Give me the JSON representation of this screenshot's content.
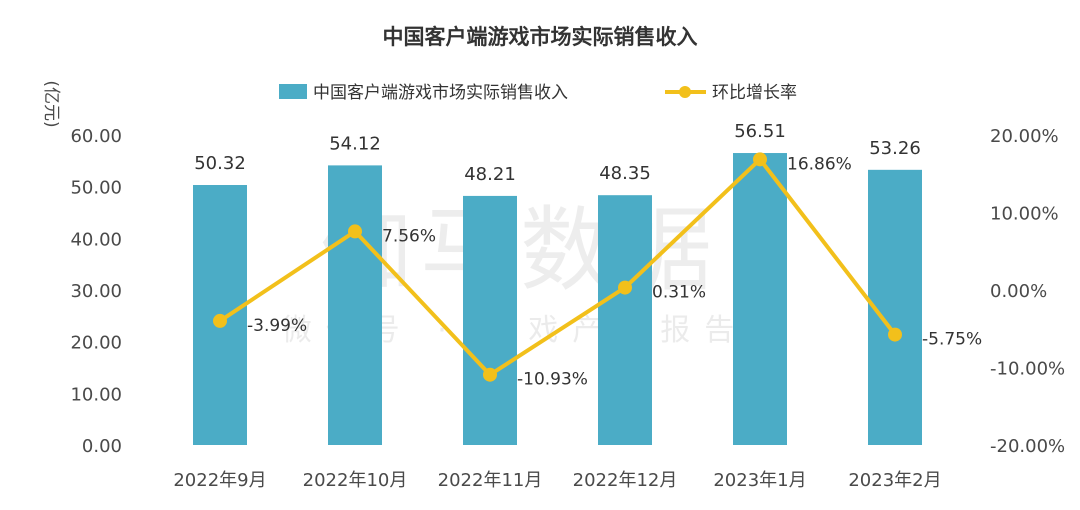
{
  "chart_data": {
    "type": "bar",
    "title": "中国客户端游戏市场实际销售收入",
    "y_unit": "(亿元)",
    "categories": [
      "2022年9月",
      "2022年10月",
      "2022年11月",
      "2022年12月",
      "2023年1月",
      "2023年2月"
    ],
    "series": [
      {
        "name": "中国客户端游戏市场实际销售收入",
        "type": "bar",
        "axis": "left",
        "color": "#4bacc6",
        "values": [
          50.32,
          54.12,
          48.21,
          48.35,
          56.51,
          53.26
        ],
        "labels": [
          "50.32",
          "54.12",
          "48.21",
          "48.35",
          "56.51",
          "53.26"
        ]
      },
      {
        "name": "环比增长率",
        "type": "line",
        "axis": "right",
        "color": "#f2c01b",
        "values": [
          -3.99,
          7.56,
          -10.93,
          0.31,
          16.86,
          -5.75
        ],
        "labels": [
          "-3.99%",
          "7.56%",
          "-10.93%",
          "0.31%",
          "16.86%",
          "-5.75%"
        ]
      }
    ],
    "y_left": {
      "min": 0,
      "max": 60,
      "ticks": [
        "0.00",
        "10.00",
        "20.00",
        "30.00",
        "40.00",
        "50.00",
        "60.00"
      ]
    },
    "y_right": {
      "min": -20,
      "max": 20,
      "ticks": [
        "-20.00%",
        "-10.00%",
        "0.00%",
        "10.00%",
        "20.00%"
      ]
    },
    "legend_position": "top",
    "grid": false
  },
  "watermark": {
    "main": "伽马数据",
    "sub": "微信号 · 游戏产业报告"
  }
}
